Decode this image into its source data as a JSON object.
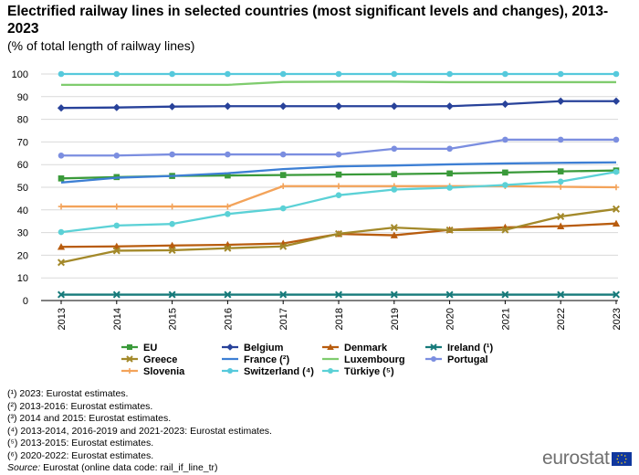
{
  "title": "Electrified railway lines in selected countries (most significant levels and changes), 2013-2023",
  "subtitle": "(% of total length of railway lines)",
  "chart_data": {
    "type": "line",
    "categories": [
      "2013",
      "2014",
      "2015",
      "2016",
      "2017",
      "2018",
      "2019",
      "2020",
      "2021",
      "2022",
      "2023"
    ],
    "ylim": [
      0,
      100
    ],
    "yticks": [
      0,
      10,
      20,
      30,
      40,
      50,
      60,
      70,
      80,
      90,
      100
    ],
    "grid": true,
    "legend_position": "bottom",
    "series": [
      {
        "name": "EU",
        "color": "#3a9a3a",
        "marker": "square",
        "values": [
          53.9,
          54.5,
          55.0,
          55.2,
          55.4,
          55.6,
          55.8,
          56.1,
          56.5,
          57.0,
          57.4
        ]
      },
      {
        "name": "Belgium",
        "color": "#28429a",
        "marker": "diamond",
        "values": [
          85.0,
          85.2,
          85.6,
          85.8,
          85.8,
          85.8,
          85.8,
          85.8,
          86.7,
          88.0,
          88.0
        ]
      },
      {
        "name": "Denmark",
        "color": "#b85c0e",
        "marker": "triangle",
        "values": [
          23.7,
          23.9,
          24.3,
          24.6,
          25.2,
          29.4,
          28.8,
          31.2,
          32.3,
          32.8,
          34.0
        ]
      },
      {
        "name": "Ireland (¹)",
        "color": "#167a7a",
        "marker": "x",
        "values": [
          2.6,
          2.6,
          2.6,
          2.6,
          2.6,
          2.6,
          2.6,
          2.6,
          2.6,
          2.6,
          2.6
        ]
      },
      {
        "name": "Greece",
        "color": "#a3892a",
        "marker": "x",
        "values": [
          16.8,
          22.0,
          22.2,
          23.1,
          23.9,
          29.5,
          32.2,
          31.1,
          31.2,
          37.1,
          40.4
        ]
      },
      {
        "name": "France (²)",
        "color": "#3d7fd4",
        "marker": "none",
        "values": [
          52.1,
          54.2,
          55.0,
          56.2,
          58.0,
          59.2,
          59.6,
          60.1,
          60.5,
          60.8,
          61.0
        ]
      },
      {
        "name": "Luxembourg",
        "color": "#7fcc6e",
        "marker": "none",
        "values": [
          95.2,
          95.2,
          95.2,
          95.2,
          96.5,
          96.6,
          96.6,
          96.4,
          96.4,
          96.4,
          96.4
        ]
      },
      {
        "name": "Portugal",
        "color": "#7b8ee0",
        "marker": "circle",
        "values": [
          64.0,
          64.0,
          64.5,
          64.5,
          64.5,
          64.5,
          67.0,
          67.0,
          71.0,
          71.0,
          71.0
        ]
      },
      {
        "name": "Slovenia",
        "color": "#f3a35a",
        "marker": "dash",
        "values": [
          41.5,
          41.5,
          41.5,
          41.5,
          50.5,
          50.5,
          50.5,
          50.5,
          50.5,
          50.2,
          50.0
        ]
      },
      {
        "name": "Switzerland (⁴)",
        "color": "#56c9dc",
        "marker": "circle",
        "values": [
          100.0,
          100.0,
          100.0,
          100.0,
          100.0,
          100.0,
          100.0,
          100.0,
          100.0,
          100.0,
          100.0
        ]
      },
      {
        "name": "Türkiye (⁵)",
        "color": "#5bd1d6",
        "marker": "circle",
        "values": [
          30.2,
          33.1,
          33.8,
          38.2,
          40.7,
          46.5,
          49.0,
          49.8,
          51.0,
          52.5,
          56.8
        ]
      }
    ]
  },
  "legend_order": [
    "EU",
    "Belgium",
    "Denmark",
    "Ireland (¹)",
    "Greece",
    "France (²)",
    "Luxembourg",
    "Portugal",
    "Slovenia",
    "Switzerland (⁴)",
    "Türkiye (⁵)"
  ],
  "footnotes": [
    "(¹) 2023: Eurostat estimates.",
    "(²) 2013-2016: Eurostat estimates.",
    "(³) 2014 and 2015: Eurostat estimates.",
    "(⁴) 2013-2014, 2016-2019 and 2021-2023: Eurostat estimates.",
    "(⁵) 2013-2015: Eurostat estimates.",
    "(⁶) 2020-2022: Eurostat estimates."
  ],
  "source": {
    "label": "Source:",
    "text": " Eurostat (online data code: rail_if_line_tr)"
  },
  "logo_text": "eurostat"
}
